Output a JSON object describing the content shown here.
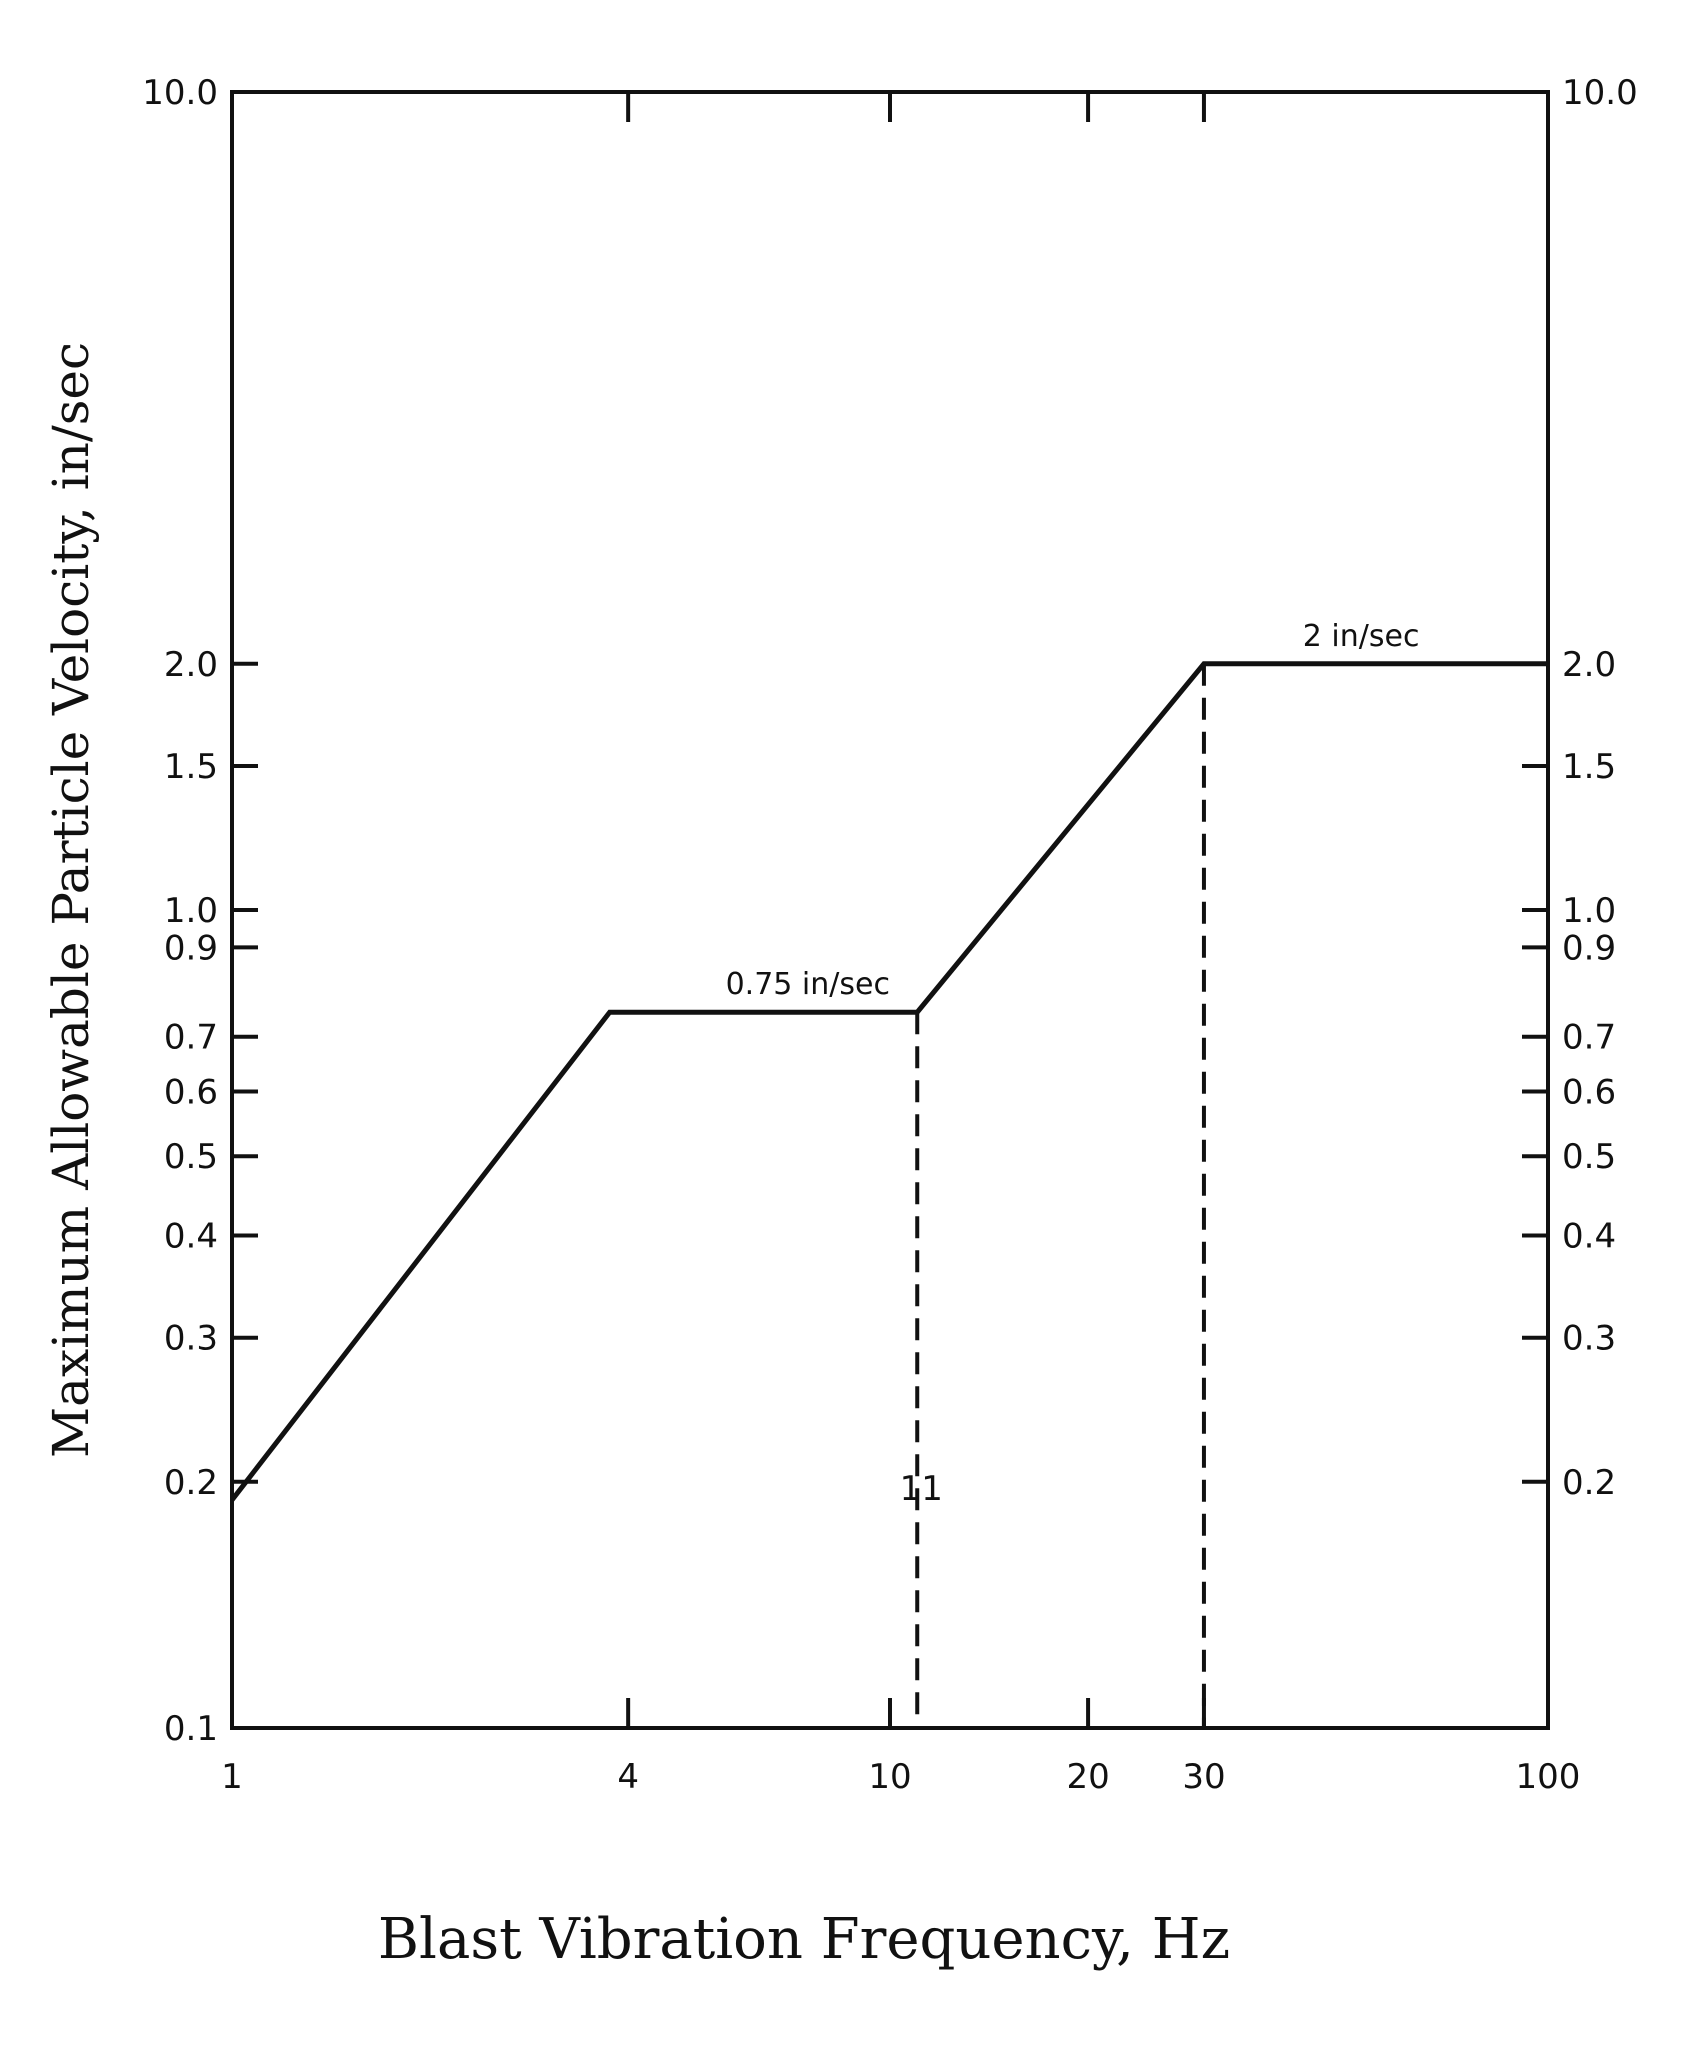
{
  "chart_data": {
    "type": "line",
    "xscale": "log",
    "yscale": "log",
    "xlim": [
      1,
      100
    ],
    "ylim": [
      0.1,
      10.0
    ],
    "xlabel": "Blast Vibration Frequency, Hz",
    "ylabel": "Maximum Allowable Particle Velocity, in/sec",
    "x_ticks": [
      {
        "value": 1,
        "label": "1"
      },
      {
        "value": 4,
        "label": "4"
      },
      {
        "value": 10,
        "label": "10"
      },
      {
        "value": 20,
        "label": "20"
      },
      {
        "value": 30,
        "label": "30"
      },
      {
        "value": 100,
        "label": "100"
      }
    ],
    "top_ticks": [
      4,
      10,
      20,
      30
    ],
    "y_ticks_left": [
      {
        "value": 0.1,
        "label": "0.1"
      },
      {
        "value": 0.2,
        "label": "0.2"
      },
      {
        "value": 0.3,
        "label": "0.3"
      },
      {
        "value": 0.4,
        "label": "0.4"
      },
      {
        "value": 0.5,
        "label": "0.5"
      },
      {
        "value": 0.6,
        "label": "0.6"
      },
      {
        "value": 0.7,
        "label": "0.7"
      },
      {
        "value": 0.9,
        "label": "0.9"
      },
      {
        "value": 1.0,
        "label": "1.0"
      },
      {
        "value": 1.5,
        "label": "1.5"
      },
      {
        "value": 2.0,
        "label": "2.0"
      },
      {
        "value": 10.0,
        "label": "10.0"
      }
    ],
    "y_ticks_right": [
      {
        "value": 0.2,
        "label": "0.2"
      },
      {
        "value": 0.3,
        "label": "0.3"
      },
      {
        "value": 0.4,
        "label": "0.4"
      },
      {
        "value": 0.5,
        "label": "0.5"
      },
      {
        "value": 0.6,
        "label": "0.6"
      },
      {
        "value": 0.7,
        "label": "0.7"
      },
      {
        "value": 0.9,
        "label": "0.9"
      },
      {
        "value": 1.0,
        "label": "1.0"
      },
      {
        "value": 1.5,
        "label": "1.5"
      },
      {
        "value": 2.0,
        "label": "2.0"
      },
      {
        "value": 10.0,
        "label": "10.0"
      }
    ],
    "series": [
      {
        "x": [
          1,
          3.75,
          11,
          30,
          100
        ],
        "y": [
          0.19,
          0.75,
          0.75,
          2.0,
          2.0
        ]
      }
    ],
    "reference_lines": [
      {
        "x": 11,
        "label": "11"
      },
      {
        "x": 30
      }
    ],
    "annotations": [
      {
        "text": "0.75 in/sec",
        "x": 7.5,
        "y": 0.75
      },
      {
        "text": "2 in/sec",
        "x": 52,
        "y": 2.0
      }
    ],
    "grid": false,
    "legend": "none"
  }
}
